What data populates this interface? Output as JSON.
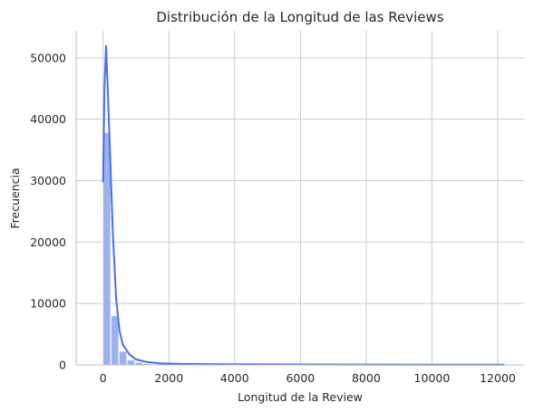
{
  "chart_data": {
    "type": "bar",
    "title": "Distribución de la Longitud de las Reviews",
    "xlabel": "Longitud de la Review",
    "ylabel": "Frecuencia",
    "xlim": [
      -820,
      12800
    ],
    "ylim": [
      0,
      54400
    ],
    "xticks": [
      0,
      2000,
      4000,
      6000,
      8000,
      10000,
      12000
    ],
    "yticks": [
      0,
      10000,
      20000,
      30000,
      40000,
      50000
    ],
    "grid": true,
    "bin_width": 244,
    "bins": [
      {
        "x0": 0,
        "x1": 244,
        "value": 37800
      },
      {
        "x0": 244,
        "x1": 488,
        "value": 8000
      },
      {
        "x0": 488,
        "x1": 732,
        "value": 2200
      },
      {
        "x0": 732,
        "x1": 976,
        "value": 800
      },
      {
        "x0": 976,
        "x1": 1220,
        "value": 400
      },
      {
        "x0": 1220,
        "x1": 1464,
        "value": 200
      },
      {
        "x0": 1464,
        "x1": 1708,
        "value": 100
      }
    ],
    "kde": [
      [
        0,
        29700
      ],
      [
        40,
        45000
      ],
      [
        90,
        52000
      ],
      [
        140,
        45000
      ],
      [
        200,
        36000
      ],
      [
        300,
        21000
      ],
      [
        400,
        10500
      ],
      [
        500,
        5500
      ],
      [
        600,
        3300
      ],
      [
        800,
        1700
      ],
      [
        1000,
        900
      ],
      [
        1300,
        500
      ],
      [
        1700,
        250
      ],
      [
        2500,
        150
      ],
      [
        4000,
        100
      ],
      [
        6000,
        80
      ],
      [
        8000,
        60
      ],
      [
        10000,
        50
      ],
      [
        12200,
        40
      ]
    ],
    "bar_color": "#9db1ee",
    "line_color": "#4a6fe3"
  }
}
